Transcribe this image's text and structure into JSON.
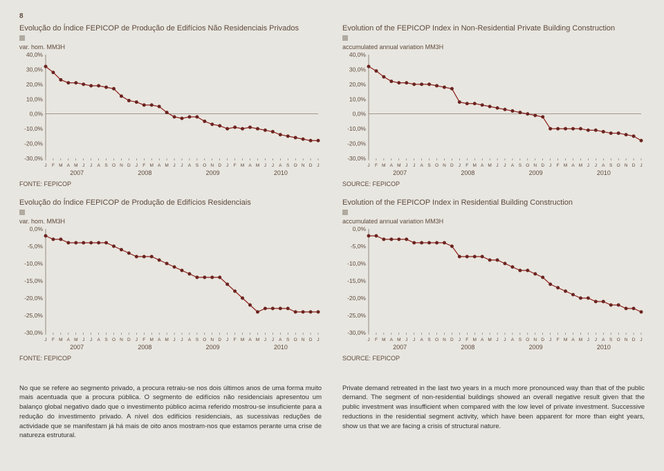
{
  "page_number": "8",
  "years": [
    "2007",
    "2008",
    "2009",
    "2010"
  ],
  "month_labels": [
    "J",
    "F",
    "M",
    "A",
    "M",
    "J",
    "J",
    "A",
    "S",
    "O",
    "N",
    "D",
    "J",
    "F",
    "M",
    "A",
    "M",
    "J",
    "J",
    "A",
    "S",
    "O",
    "N",
    "D",
    "J",
    "F",
    "M",
    "A",
    "M",
    "J",
    "J",
    "A",
    "S",
    "O",
    "N",
    "D",
    "J"
  ],
  "colors": {
    "background": "#e8e6e0",
    "series_line": "#8c1d18",
    "series_marker": "#6b2420",
    "gridline": "#d0ccc0",
    "axis_text": "#5d4a3d",
    "body_text": "#333333"
  },
  "charts": {
    "top_left": {
      "title": "Evolução do Índice FEPICOP de Produção de Edifícios Não Residenciais Privados",
      "ylabel": "var. hom. MM3H",
      "source": "FONTE: FEPICOP",
      "type": "line",
      "xlim": [
        0,
        36
      ],
      "ylim": [
        -30,
        40
      ],
      "ytick_step": 10,
      "ytick_labels": [
        "40,0%",
        "30,0%",
        "20,0%",
        "10,0%",
        "0,0%",
        "-10,0%",
        "-20,0%",
        "-30,0%"
      ],
      "line_width": 1.2,
      "marker": "circle",
      "marker_size": 2.5,
      "values": [
        32,
        28,
        23,
        21,
        21,
        20,
        19,
        19,
        18,
        17,
        12,
        9,
        8,
        6,
        6,
        5,
        1,
        -2,
        -3,
        -2,
        -2,
        -5,
        -7,
        -8,
        -10,
        -9,
        -10,
        -9,
        -10,
        -11,
        -12,
        -14,
        -15,
        -16,
        -17,
        -18,
        -18
      ]
    },
    "top_right": {
      "title": "Evolution of the FEPICOP Index in Non-Residential Private Building Construction",
      "ylabel": "accumulated annual variation MM3H",
      "source": "SOURCE: FEPICOP",
      "type": "line",
      "xlim": [
        0,
        36
      ],
      "ylim": [
        -30,
        40
      ],
      "ytick_step": 10,
      "ytick_labels": [
        "40,0%",
        "30,0%",
        "20,0%",
        "10,0%",
        "0,0%",
        "-10,0%",
        "-20,0%",
        "-30,0%"
      ],
      "line_width": 1.2,
      "marker": "circle",
      "marker_size": 2.5,
      "values": [
        32,
        29,
        25,
        22,
        21,
        21,
        20,
        20,
        20,
        19,
        18,
        17,
        8,
        7,
        7,
        6,
        5,
        4,
        3,
        2,
        1,
        0,
        -1,
        -2,
        -10,
        -10,
        -10,
        -10,
        -10,
        -11,
        -11,
        -12,
        -13,
        -13,
        -14,
        -15,
        -18
      ]
    },
    "bot_left": {
      "title": "Evolução do Índice FEPICOP de Produção de Edifícios Residenciais",
      "ylabel": "var. hom. MM3H",
      "source": "FONTE: FEPICOP",
      "type": "line",
      "xlim": [
        0,
        36
      ],
      "ylim": [
        -30,
        0
      ],
      "ytick_step": 5,
      "ytick_labels": [
        "0,0%",
        "-5,0%",
        "-10,0%",
        "-15,0%",
        "-20,0%",
        "-25,0%",
        "-30,0%"
      ],
      "line_width": 1.2,
      "marker": "circle",
      "marker_size": 2.5,
      "values": [
        -2,
        -3,
        -3,
        -4,
        -4,
        -4,
        -4,
        -4,
        -4,
        -5,
        -6,
        -7,
        -8,
        -8,
        -8,
        -9,
        -10,
        -11,
        -12,
        -13,
        -14,
        -14,
        -14,
        -14,
        -16,
        -18,
        -20,
        -22,
        -24,
        -23,
        -23,
        -23,
        -23,
        -24,
        -24,
        -24,
        -24
      ]
    },
    "bot_right": {
      "title": "Evolution of the FEPICOP Index in Residential Building Construction",
      "ylabel": "accumulated annual variation MM3H",
      "source": "SOURCE: FEPICOP",
      "type": "line",
      "xlim": [
        0,
        36
      ],
      "ylim": [
        -30,
        0
      ],
      "ytick_step": 5,
      "ytick_labels": [
        "0,0%",
        "-5,0%",
        "-10,0%",
        "-15,0%",
        "-20,0%",
        "-25,0%",
        "-30,0%"
      ],
      "line_width": 1.2,
      "marker": "circle",
      "marker_size": 2.5,
      "values": [
        -2,
        -2,
        -3,
        -3,
        -3,
        -3,
        -4,
        -4,
        -4,
        -4,
        -4,
        -5,
        -8,
        -8,
        -8,
        -8,
        -9,
        -9,
        -10,
        -11,
        -12,
        -12,
        -13,
        -14,
        -16,
        -17,
        -18,
        -19,
        -20,
        -20,
        -21,
        -21,
        -22,
        -22,
        -23,
        -23,
        -24
      ]
    }
  },
  "body": {
    "left": "No que se refere ao segmento privado, a procura retraiu-se nos dois últimos anos de uma forma muito mais acentuada que a procura pública. O segmento de edifícios não residenciais apresentou um balanço global negativo dado que o investimento público acima referido mostrou-se insuficiente para a redução do investimento privado. A nível dos edifícios residenciais, as sucessivas reduções de actividade que se manifestam já há mais de oito anos mostram-nos que estamos perante uma crise de natureza estrutural.",
    "right": "Private demand retreated in the last two years in a much more pronounced way than that of the public demand. The segment of non-residential buildings showed an overall negative result given that the public investment was insufficient when compared with the low level of private investment. Successive reductions in the residential segment activity, which have been apparent for more than eight years, show us that we are facing a crisis of structural nature."
  }
}
